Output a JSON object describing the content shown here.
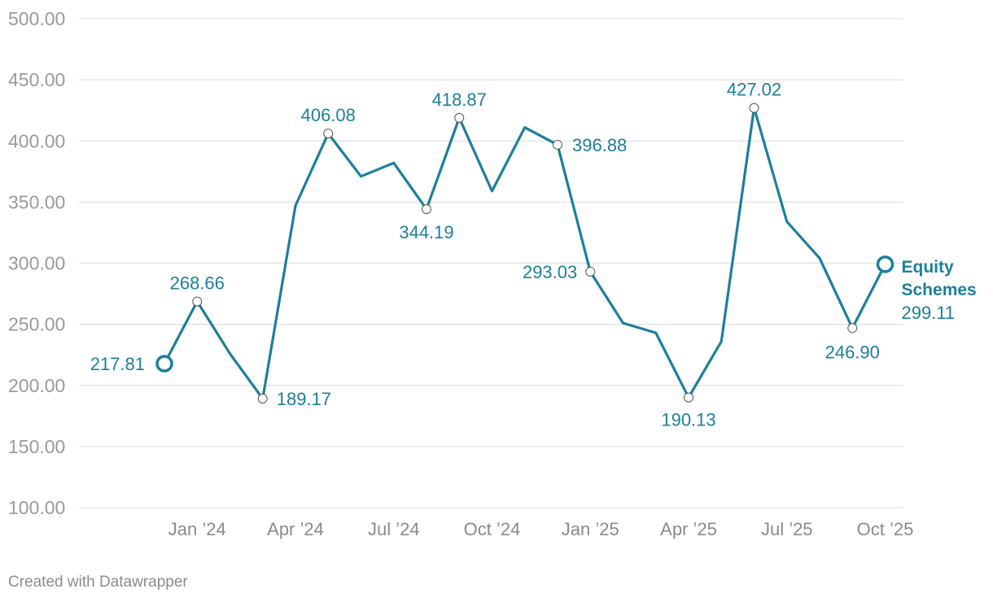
{
  "chart_data": {
    "type": "line",
    "title": "",
    "xlabel": "",
    "ylabel": "",
    "ylim": [
      100,
      500
    ],
    "y_ticks": [
      "500.00",
      "450.00",
      "400.00",
      "350.00",
      "300.00",
      "250.00",
      "200.00",
      "150.00",
      "100.00"
    ],
    "x_ticks": [
      "Jan ’24",
      "Apr ’24",
      "Jul ’24",
      "Oct ’24",
      "Jan ’25",
      "Apr ’25",
      "Jul ’25",
      "Oct ’25"
    ],
    "grid": true,
    "series": [
      {
        "name": "Equity Schemes",
        "color": "#1d7f9b",
        "x": [
          "Dec 2023",
          "Jan 2024",
          "Feb 2024",
          "Mar 2024",
          "Apr 2024",
          "May 2024",
          "Jun 2024",
          "Jul 2024",
          "Aug 2024",
          "Sep 2024",
          "Oct 2024",
          "Nov 2024",
          "Dec 2024",
          "Jan 2025",
          "Feb 2025",
          "Mar 2025",
          "Apr 2025",
          "May 2025",
          "Jun 2025",
          "Jul 2025",
          "Aug 2025",
          "Sep 2025",
          "Oct 2025",
          "Nov 2025"
        ],
        "values": [
          217.81,
          268.66,
          226,
          189.17,
          347,
          406.08,
          371,
          382,
          344.19,
          418.87,
          359,
          411,
          396.88,
          293.03,
          251,
          243,
          190.13,
          236,
          427.02,
          334,
          304,
          246.9,
          299.11,
          null
        ]
      }
    ],
    "data_labels": [
      {
        "index": 0,
        "text": "217.81"
      },
      {
        "index": 1,
        "text": "268.66"
      },
      {
        "index": 3,
        "text": "189.17"
      },
      {
        "index": 5,
        "text": "406.08"
      },
      {
        "index": 8,
        "text": "344.19"
      },
      {
        "index": 9,
        "text": "418.87"
      },
      {
        "index": 12,
        "text": "396.88"
      },
      {
        "index": 13,
        "text": "293.03"
      },
      {
        "index": 16,
        "text": "190.13"
      },
      {
        "index": 18,
        "text": "427.02"
      },
      {
        "index": 21,
        "text": "246.90"
      },
      {
        "index": 22,
        "text": "299.11"
      }
    ],
    "end_label": {
      "line1": "Equity",
      "line2": "Schemes",
      "value": "299.11"
    }
  },
  "footer": {
    "credit": "Created with Datawrapper"
  }
}
